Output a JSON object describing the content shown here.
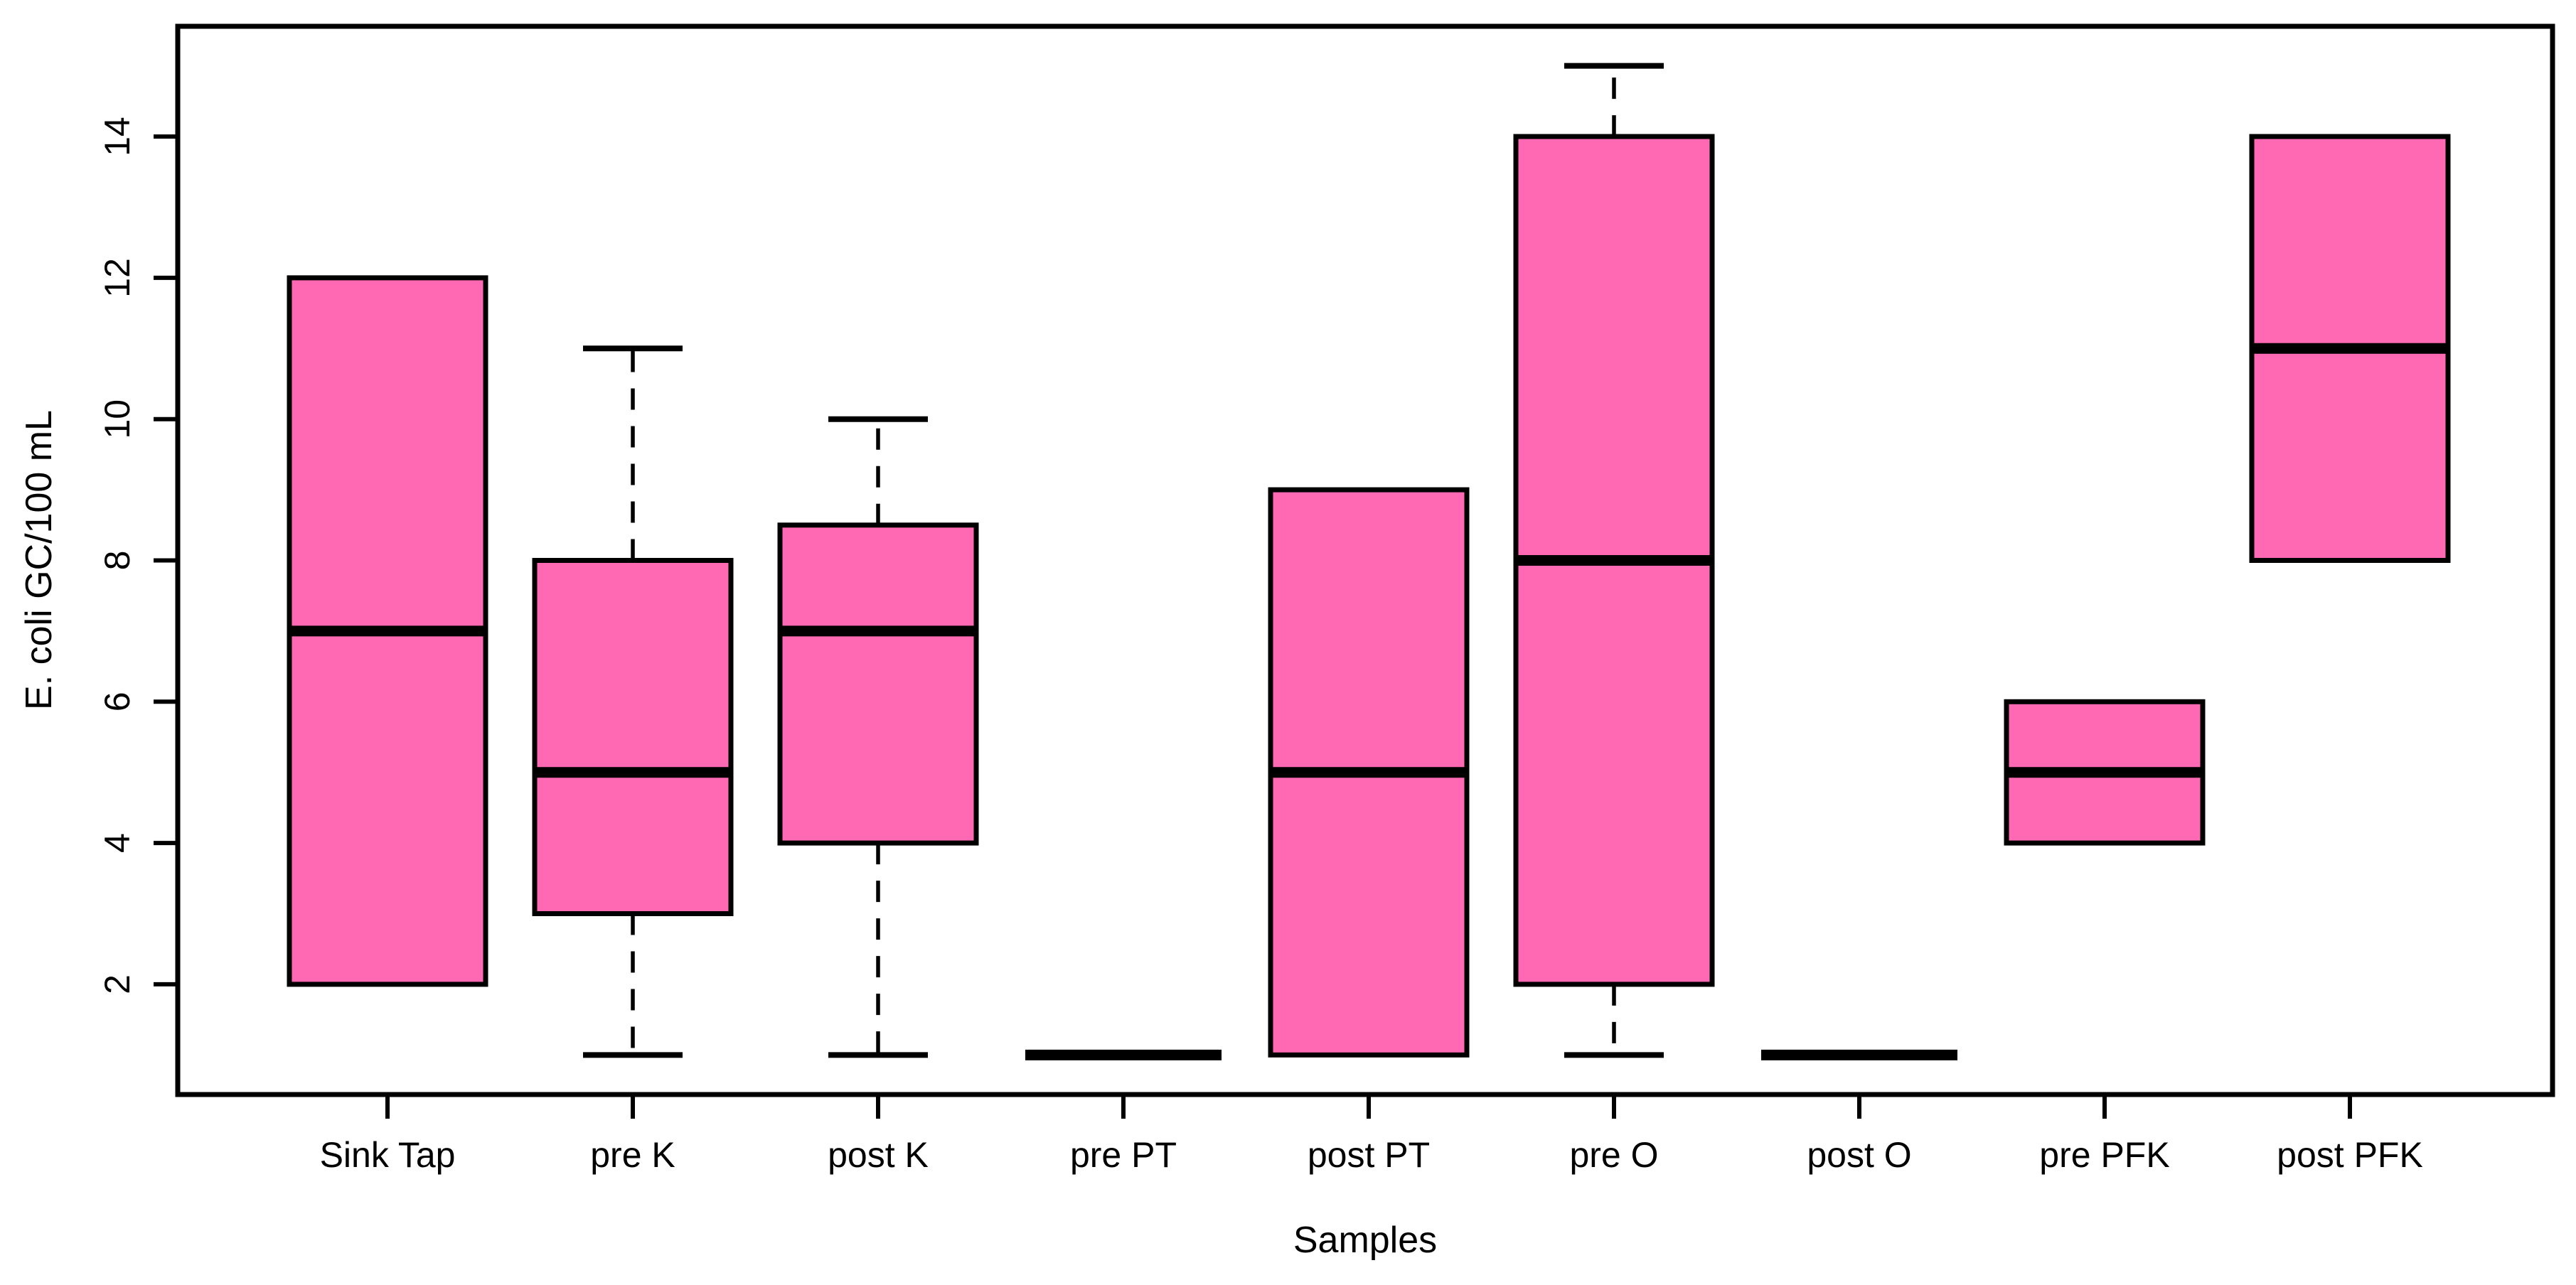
{
  "chart_data": {
    "type": "boxplot",
    "title": "",
    "xlabel": "Samples",
    "ylabel": "E. coli GC/100 mL",
    "categories": [
      "Sink Tap",
      "pre K",
      "post K",
      "pre PT",
      "post PT",
      "pre O",
      "post O",
      "pre PFK",
      "post PFK"
    ],
    "y_ticks": [
      2,
      4,
      6,
      8,
      10,
      12,
      14
    ],
    "ylim": [
      0.44,
      15.56
    ],
    "grid": false,
    "legend": false,
    "colors": {
      "box_fill": "#FF69B4",
      "stroke": "#000000",
      "background": "#FFFFFF"
    },
    "boxes": [
      {
        "label": "Sink Tap",
        "whisker_low": 2,
        "q1": 2,
        "median": 7,
        "q3": 12,
        "whisker_high": 12
      },
      {
        "label": "pre K",
        "whisker_low": 1,
        "q1": 3,
        "median": 5,
        "q3": 8,
        "whisker_high": 11
      },
      {
        "label": "post K",
        "whisker_low": 1,
        "q1": 4,
        "median": 7,
        "q3": 8.5,
        "whisker_high": 10
      },
      {
        "label": "pre PT",
        "whisker_low": 1,
        "q1": 1,
        "median": 1,
        "q3": 1,
        "whisker_high": 1
      },
      {
        "label": "post PT",
        "whisker_low": 1,
        "q1": 1,
        "median": 5,
        "q3": 9,
        "whisker_high": 9
      },
      {
        "label": "pre O",
        "whisker_low": 1,
        "q1": 2,
        "median": 8,
        "q3": 14,
        "whisker_high": 15
      },
      {
        "label": "post O",
        "whisker_low": 1,
        "q1": 1,
        "median": 1,
        "q3": 1,
        "whisker_high": 1
      },
      {
        "label": "pre PFK",
        "whisker_low": 4,
        "q1": 4,
        "median": 5,
        "q3": 6,
        "whisker_high": 6
      },
      {
        "label": "post PFK",
        "whisker_low": 8,
        "q1": 8,
        "median": 11,
        "q3": 14,
        "whisker_high": 14
      }
    ]
  }
}
